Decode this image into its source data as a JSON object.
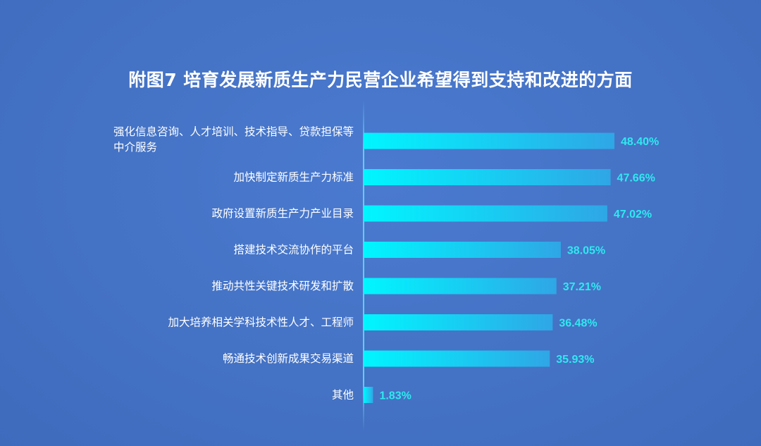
{
  "title": "附图7  培育发展新质生产力民营企业希望得到支持和改进的方面",
  "colors": {
    "background": "#4472c4",
    "bar_start": "#00f6ff",
    "bar_end": "#2fa6e6",
    "value_label": "#2fe8f0",
    "axis": "#5fd0f0"
  },
  "chart_data": {
    "type": "bar",
    "orientation": "horizontal",
    "categories": [
      "强化信息咨询、人才培训、技术指导、贷款担保等中介服务",
      "加快制定新质生产力标准",
      "政府设置新质生产力产业目录",
      "搭建技术交流协作的平台",
      "推动共性关键技术研发和扩散",
      "加大培养相关学科技术性人才、工程师",
      "畅通技术创新成果交易渠道",
      "其他"
    ],
    "category_lines": [
      [
        "强化信息咨询、人才培训、技术指导、贷款担保等",
        "中介服务"
      ],
      [
        "加快制定新质生产力标准"
      ],
      [
        "政府设置新质生产力产业目录"
      ],
      [
        "搭建技术交流协作的平台"
      ],
      [
        "推动共性关键技术研发和扩散"
      ],
      [
        "加大培养相关学科技术性人才、工程师"
      ],
      [
        "畅通技术创新成果交易渠道"
      ],
      [
        "其他"
      ]
    ],
    "values": [
      48.4,
      47.66,
      47.02,
      38.05,
      37.21,
      36.48,
      35.93,
      1.83
    ],
    "value_labels": [
      "48.40%",
      "47.66%",
      "47.02%",
      "38.05%",
      "37.21%",
      "36.48%",
      "35.93%",
      "1.83%"
    ],
    "unit": "%",
    "xlim": [
      0,
      48.4
    ],
    "grid": false,
    "legend": "none"
  }
}
